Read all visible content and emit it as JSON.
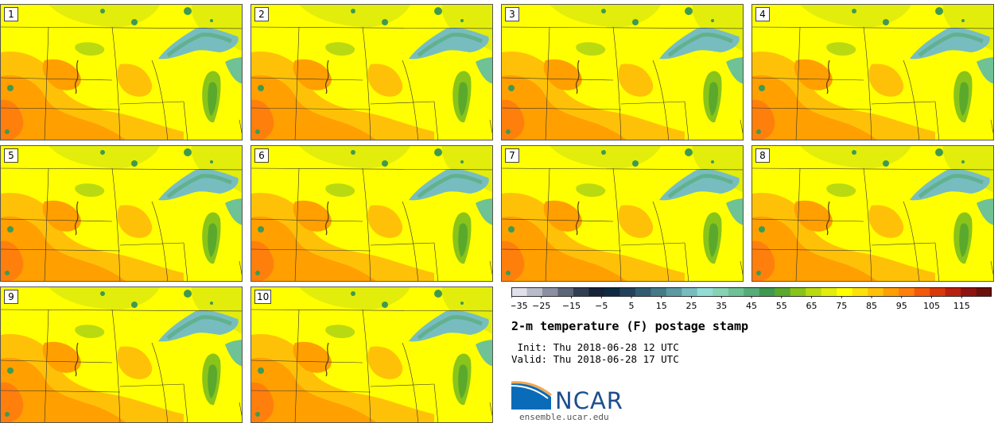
{
  "members": [
    "1",
    "2",
    "3",
    "4",
    "5",
    "6",
    "7",
    "8",
    "9",
    "10"
  ],
  "colorbar": {
    "colors": [
      "#dfe0e9",
      "#b8bcc9",
      "#8a90a2",
      "#5d6579",
      "#333d52",
      "#162238",
      "#0f2a40",
      "#23425a",
      "#335c70",
      "#467a88",
      "#5b9aa3",
      "#77bdc0",
      "#92dcd6",
      "#85d3b2",
      "#6fc196",
      "#58ac79",
      "#3f9a51",
      "#5aa92c",
      "#89c41a",
      "#b9da10",
      "#e2ed0c",
      "#ffff00",
      "#fde20a",
      "#ffc107",
      "#ff9f00",
      "#ff7f0d",
      "#f25a0a",
      "#d9380a",
      "#b8200f",
      "#8e1410",
      "#6b100c"
    ],
    "tick_labels": [
      "−35",
      "−25",
      "−15",
      "−5",
      "5",
      "15",
      "25",
      "35",
      "45",
      "55",
      "65",
      "75",
      "85",
      "95",
      "105",
      "115"
    ],
    "min": -35,
    "max": 125
  },
  "title": "2-m temperature (F) postage stamp",
  "init_line": " Init: Thu 2018-06-28 12 UTC",
  "valid_line": "Valid: Thu 2018-06-28 17 UTC",
  "logo": {
    "name": "NCAR",
    "url": "ensemble.ucar.edu"
  }
}
